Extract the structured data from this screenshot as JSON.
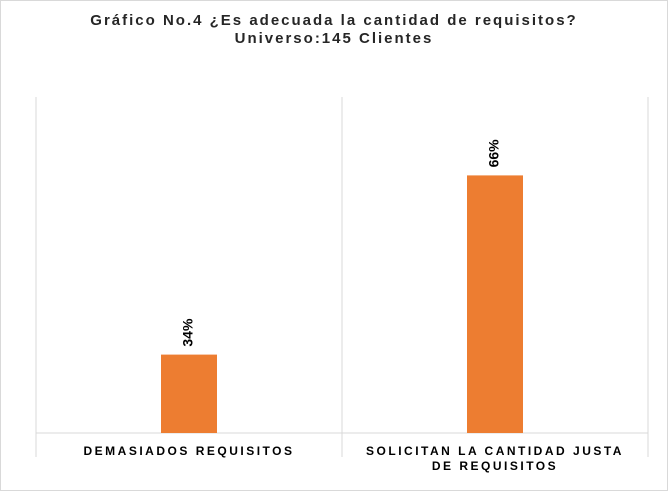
{
  "chart_data": {
    "type": "bar",
    "title": "Gráfico No.4 ¿Es adecuada la cantidad de requisitos? Universo:145 Clientes",
    "categories": [
      "DEMASIADOS REQUISITOS",
      "SOLICITAN LA CANTIDAD JUSTA DE REQUISITOS"
    ],
    "values": [
      34,
      66
    ],
    "value_labels": [
      "34%",
      "66%"
    ],
    "color": "#ed7d31",
    "ylim": [
      20,
      80
    ]
  }
}
